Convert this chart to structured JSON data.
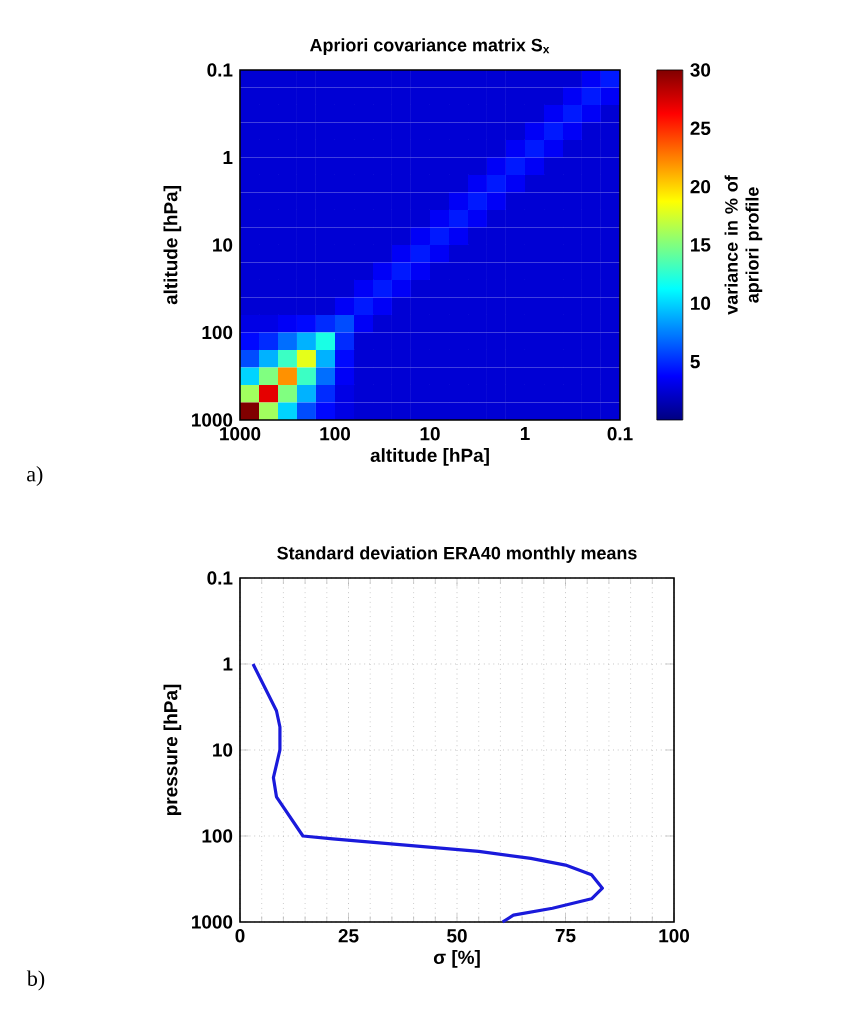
{
  "chart_data": [
    {
      "type": "heatmap",
      "title": "Apriori covariance matrix S$_{x}$",
      "xlabel": "altitude [hPa]",
      "ylabel": "altitude [hPa]",
      "clabel": "variance in % of apriori profile",
      "annotations": [
        "a)"
      ],
      "log": "xy",
      "xlim": [
        1000,
        0.1
      ],
      "ylim": [
        1000,
        0.1
      ],
      "xticks": [
        1000,
        100,
        10,
        1,
        0.1
      ],
      "yticks": [
        1000,
        100,
        10,
        1,
        0.1
      ],
      "x": [
        794,
        501,
        316,
        200,
        126,
        79.4,
        50.1,
        31.6,
        20,
        12.6,
        7.94,
        5.01,
        3.16,
        2,
        1.26,
        0.794,
        0.501,
        0.316,
        0.2,
        0.126
      ],
      "clim": [
        0,
        30
      ],
      "cticks": [
        5,
        10,
        15,
        20,
        25,
        30
      ],
      "cells": [
        [
          2.5,
          2.5,
          2.5,
          2.5,
          2.5,
          2.5,
          2.5,
          2.5,
          2.5,
          2.5,
          2.5,
          2.5,
          2.5,
          2.5,
          2.5,
          2.5,
          2.5,
          2.5,
          3.5,
          4.5
        ],
        [
          2.5,
          2.5,
          2.5,
          2.5,
          2.5,
          2.5,
          2.5,
          2.5,
          2.5,
          2.5,
          2.5,
          2.5,
          2.5,
          2.5,
          2.5,
          2.5,
          2.5,
          3.5,
          4.5,
          3.5
        ],
        [
          2.5,
          2.5,
          2.5,
          2.5,
          2.5,
          2.5,
          2.5,
          2.5,
          2.5,
          2.5,
          2.5,
          2.5,
          2.5,
          2.5,
          2.5,
          2.5,
          3.5,
          4.5,
          3.5,
          2.5
        ],
        [
          2.5,
          2.5,
          2.5,
          2.5,
          2.5,
          2.5,
          2.5,
          2.5,
          2.5,
          2.5,
          2.5,
          2.5,
          2.5,
          2.5,
          2.5,
          3.5,
          4.5,
          3.5,
          2.5,
          2.5
        ],
        [
          2.5,
          2.5,
          2.5,
          2.5,
          2.5,
          2.5,
          2.5,
          2.5,
          2.5,
          2.5,
          2.5,
          2.5,
          2.5,
          2.5,
          3.5,
          4.5,
          3.5,
          2.5,
          2.5,
          2.5
        ],
        [
          2.5,
          2.5,
          2.5,
          2.5,
          2.5,
          2.5,
          2.5,
          2.5,
          2.5,
          2.5,
          2.5,
          2.5,
          2.5,
          3.5,
          4.5,
          3.5,
          2.5,
          2.5,
          2.5,
          2.5
        ],
        [
          2.5,
          2.5,
          2.5,
          2.5,
          2.5,
          2.5,
          2.5,
          2.5,
          2.5,
          2.5,
          2.5,
          2.5,
          3.5,
          4.5,
          3.5,
          2.5,
          2.5,
          2.5,
          2.5,
          2.5
        ],
        [
          2.5,
          2.5,
          2.5,
          2.5,
          2.5,
          2.5,
          2.5,
          2.5,
          2.5,
          2.5,
          2.5,
          3.5,
          4.5,
          3.5,
          2.5,
          2.5,
          2.5,
          2.5,
          2.5,
          2.5
        ],
        [
          2.5,
          2.5,
          2.5,
          2.5,
          2.5,
          2.5,
          2.5,
          2.5,
          2.5,
          2.5,
          3.5,
          4.5,
          3.5,
          2.5,
          2.5,
          2.5,
          2.5,
          2.5,
          2.5,
          2.5
        ],
        [
          2.5,
          2.5,
          2.5,
          2.5,
          2.5,
          2.5,
          2.5,
          2.5,
          2.5,
          3.5,
          4.5,
          3.5,
          2.5,
          2.5,
          2.5,
          2.5,
          2.5,
          2.5,
          2.5,
          2.5
        ],
        [
          2.5,
          2.5,
          2.5,
          2.5,
          2.5,
          2.5,
          2.5,
          2.5,
          3.5,
          4.5,
          3.5,
          2.5,
          2.5,
          2.5,
          2.5,
          2.5,
          2.5,
          2.5,
          2.5,
          2.5
        ],
        [
          2.5,
          2.5,
          2.5,
          2.5,
          2.5,
          2.5,
          2.5,
          3.5,
          4.5,
          3.5,
          2.5,
          2.5,
          2.5,
          2.5,
          2.5,
          2.5,
          2.5,
          2.5,
          2.5,
          2.5
        ],
        [
          2.5,
          2.5,
          2.5,
          2.5,
          2.5,
          2.5,
          3.5,
          4.5,
          3.5,
          2.5,
          2.5,
          2.5,
          2.5,
          2.5,
          2.5,
          2.5,
          2.5,
          2.5,
          2.5,
          2.5
        ],
        [
          2.5,
          2.5,
          2.5,
          2.5,
          2.5,
          3.5,
          4.5,
          3.5,
          2.5,
          2.5,
          2.5,
          2.5,
          2.5,
          2.5,
          2.5,
          2.5,
          2.5,
          2.5,
          2.5,
          2.5
        ],
        [
          3,
          3,
          3.5,
          4,
          5,
          6,
          3.5,
          2.5,
          2.5,
          2.5,
          2.5,
          2.5,
          2.5,
          2.5,
          2.5,
          2.5,
          2.5,
          2.5,
          2.5,
          2.5
        ],
        [
          4,
          5,
          7,
          9,
          12,
          5,
          2.5,
          2.5,
          2.5,
          2.5,
          2.5,
          2.5,
          2.5,
          2.5,
          2.5,
          2.5,
          2.5,
          2.5,
          2.5,
          2.5
        ],
        [
          6,
          9,
          13,
          18,
          9,
          4,
          2.5,
          2.5,
          2.5,
          2.5,
          2.5,
          2.5,
          2.5,
          2.5,
          2.5,
          2.5,
          2.5,
          2.5,
          2.5,
          2.5
        ],
        [
          10,
          15,
          22,
          13,
          7,
          3.5,
          2.5,
          2.5,
          2.5,
          2.5,
          2.5,
          2.5,
          2.5,
          2.5,
          2.5,
          2.5,
          2.5,
          2.5,
          2.5,
          2.5
        ],
        [
          16,
          27,
          15,
          9,
          5,
          3,
          2.5,
          2.5,
          2.5,
          2.5,
          2.5,
          2.5,
          2.5,
          2.5,
          2.5,
          2.5,
          2.5,
          2.5,
          2.5,
          2.5
        ],
        [
          30,
          16,
          10,
          6,
          4,
          3,
          2.5,
          2.5,
          2.5,
          2.5,
          2.5,
          2.5,
          2.5,
          2.5,
          2.5,
          2.5,
          2.5,
          2.5,
          2.5,
          2.5
        ]
      ]
    },
    {
      "type": "line",
      "title": "Standard deviation ERA40 monthly means",
      "xlabel": "σ [%]",
      "ylabel": "pressure [hPa]",
      "annotations": [
        "b)"
      ],
      "log": "y",
      "grid": true,
      "xlim": [
        0,
        100
      ],
      "ylim": [
        1000,
        0.1
      ],
      "xticks": [
        0,
        25,
        50,
        75,
        100
      ],
      "yticks": [
        1000,
        100,
        10,
        1,
        0.1
      ],
      "series": [
        {
          "color": "#1a1adb",
          "x": [
            3,
            8.4,
            9.2,
            9.2,
            7.7,
            8.4,
            14.5,
            21.4,
            36.8,
            55,
            67,
            75,
            81,
            83.5,
            81,
            72,
            63,
            60.5
          ],
          "values": [
            1,
            3.5,
            5.4,
            10,
            21,
            35,
            100,
            108,
            126,
            151,
            182,
            218,
            283,
            404,
            537,
            692,
            832,
            1000
          ]
        }
      ]
    }
  ]
}
